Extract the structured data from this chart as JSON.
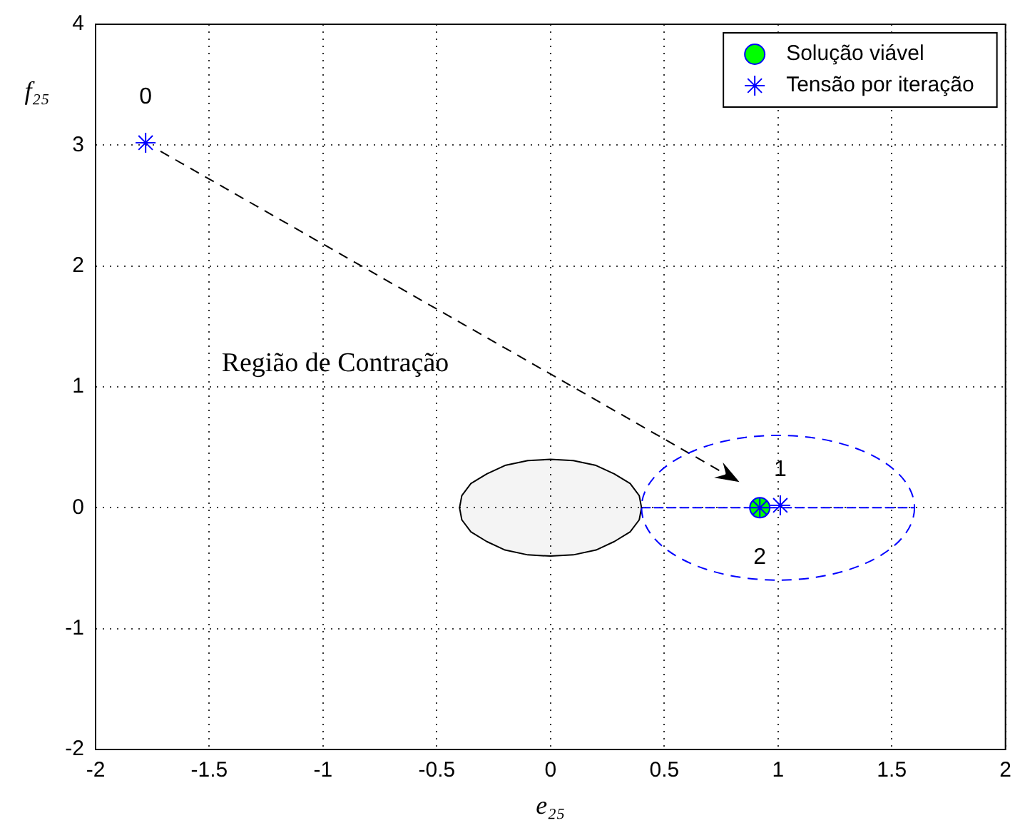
{
  "chart_data": {
    "type": "scatter",
    "xlabel": "e₂₅",
    "ylabel": "f₂₅",
    "xlim": [
      -2,
      2
    ],
    "ylim": [
      -2,
      4
    ],
    "xticks": [
      -2,
      -1.5,
      -1,
      -0.5,
      0,
      0.5,
      1,
      1.5,
      2
    ],
    "yticks": [
      -2,
      -1,
      0,
      1,
      2,
      3,
      4
    ],
    "grid": true,
    "legend": "top right",
    "series": [
      {
        "type": "area",
        "color": "#000000",
        "marker": "none",
        "x": [
          -0.4,
          -0.39,
          -0.35,
          -0.28,
          -0.2,
          -0.1,
          0,
          0.1,
          0.2,
          0.28,
          0.35,
          0.39,
          0.4
        ],
        "values": [
          0,
          0.1,
          0.2,
          0.28,
          0.35,
          0.39,
          0.4,
          0.39,
          0.35,
          0.28,
          0.2,
          0.1,
          0
        ]
      },
      {
        "type": "area",
        "color": "#000000",
        "marker": "none",
        "x": [
          -0.4,
          -0.39,
          -0.35,
          -0.28,
          -0.2,
          -0.1,
          0,
          0.1,
          0.2,
          0.28,
          0.35,
          0.39,
          0.4
        ],
        "values": [
          0,
          -0.1,
          -0.2,
          -0.28,
          -0.35,
          -0.39,
          -0.4,
          -0.39,
          -0.35,
          -0.28,
          -0.2,
          -0.1,
          0
        ]
      },
      {
        "type": "line",
        "color": "#0000ff",
        "marker": "none",
        "line_style": "dashed",
        "x": [
          0.4,
          1.6
        ],
        "values": [
          0,
          0
        ]
      },
      {
        "name": "Solução viável",
        "color": "#00ff00",
        "marker": "circle",
        "x": [
          0.92
        ],
        "values": [
          0
        ]
      },
      {
        "name": "Tensão por iteração",
        "color": "#0000ff",
        "marker": "cross",
        "x": [
          -1.78,
          1.01,
          0.92
        ],
        "values": [
          3.02,
          0.02,
          0
        ]
      }
    ],
    "annotations": [
      "0",
      "1",
      "2",
      "Região de Contração"
    ]
  }
}
